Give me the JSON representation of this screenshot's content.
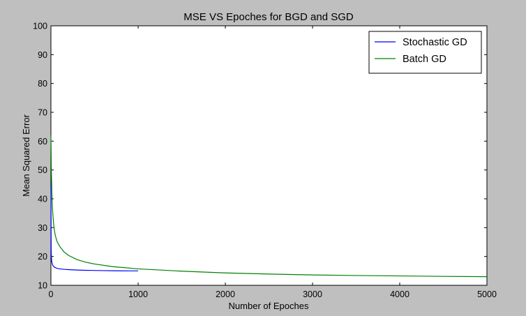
{
  "chart_data": {
    "type": "line",
    "title": "MSE VS Epoches for BGD and SGD",
    "xlabel": "Number of Epoches",
    "ylabel": "Mean Squared Error",
    "xlim": [
      0,
      5000
    ],
    "ylim": [
      10,
      100
    ],
    "xticks": [
      0,
      1000,
      2000,
      3000,
      4000,
      5000
    ],
    "yticks": [
      10,
      20,
      30,
      40,
      50,
      60,
      70,
      80,
      90,
      100
    ],
    "grid": false,
    "legend_position": "top-right",
    "series": [
      {
        "name": "Stochastic GD",
        "color": "#0000ff",
        "x": [
          0,
          3,
          6,
          10,
          15,
          20,
          30,
          40,
          60,
          80,
          100,
          150,
          200,
          300,
          400,
          500,
          600,
          700,
          800,
          900,
          1000
        ],
        "y": [
          45,
          22,
          19.5,
          18.2,
          17.5,
          17.0,
          16.6,
          16.3,
          16.0,
          15.8,
          15.7,
          15.55,
          15.45,
          15.3,
          15.2,
          15.15,
          15.1,
          15.05,
          15.02,
          15.0,
          15.0
        ]
      },
      {
        "name": "Batch GD",
        "color": "#008000",
        "x": [
          0,
          5,
          10,
          15,
          20,
          30,
          40,
          50,
          70,
          100,
          150,
          200,
          300,
          400,
          500,
          700,
          1000,
          1500,
          2000,
          2500,
          3000,
          3500,
          4000,
          4500,
          5000
        ],
        "y": [
          62,
          50,
          43,
          38.5,
          35.5,
          31.5,
          29,
          27.3,
          25.2,
          23.5,
          21.6,
          20.4,
          18.9,
          18.0,
          17.4,
          16.5,
          15.7,
          14.9,
          14.3,
          13.9,
          13.6,
          13.4,
          13.25,
          13.1,
          13.0
        ]
      }
    ]
  }
}
